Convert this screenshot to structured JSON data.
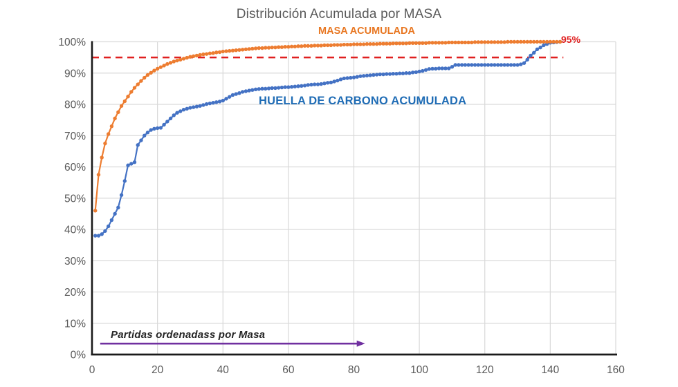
{
  "title": "Distribución Acumulada por MASA",
  "annotations": {
    "masa_label": "MASA ACUMULADA",
    "huella_label": "HUELLA DE CARBONO ACUMULADA",
    "threshold_label": "95%",
    "arrow_label": "Partidas ordenadass por Masa"
  },
  "colors": {
    "masa_series": "#ed7d31",
    "huella_series": "#4472c4",
    "masa_label_text": "#e87722",
    "huella_label_text": "#1f6cb5",
    "threshold_red": "#e02020",
    "arrow_purple": "#7030a0",
    "title_text": "#595959",
    "axis_text": "#595959",
    "gridline": "#d9d9d9",
    "axis_line": "#1a1a1a"
  },
  "chart_data": {
    "type": "line",
    "title": "Distribución Acumulada por MASA",
    "xlabel": "Partidas ordenadass por Masa",
    "ylabel": "",
    "xlim": [
      0,
      160
    ],
    "ylim_pct": [
      0,
      100
    ],
    "grid": true,
    "x_ticks": [
      0,
      20,
      40,
      60,
      80,
      100,
      120,
      140,
      160
    ],
    "y_ticks": [
      "0%",
      "10%",
      "20%",
      "30%",
      "40%",
      "50%",
      "60%",
      "70%",
      "80%",
      "90%",
      "100%"
    ],
    "threshold": {
      "value_pct": 95,
      "label": "95%",
      "line_end_x": 144
    },
    "arrow": {
      "label": "Partidas ordenadass por Masa",
      "x_start": 2.5,
      "x_end": 83,
      "y_pct": 3.5
    },
    "n_points": 143,
    "x_start": 1,
    "x_step": 1,
    "series": [
      {
        "name": "MASA ACUMULADA",
        "color": "#ed7d31",
        "values_pct": [
          46,
          57.5,
          63,
          67.5,
          70.5,
          73,
          75.5,
          77.5,
          79.5,
          81,
          82.5,
          84,
          85.3,
          86.4,
          87.5,
          88.5,
          89.4,
          90.1,
          90.8,
          91.4,
          91.9,
          92.4,
          92.9,
          93.3,
          93.7,
          94,
          94.3,
          94.6,
          94.9,
          95.2,
          95.4,
          95.6,
          95.8,
          96,
          96.1,
          96.3,
          96.4,
          96.6,
          96.7,
          96.9,
          97,
          97.1,
          97.2,
          97.3,
          97.4,
          97.5,
          97.6,
          97.7,
          97.8,
          97.9,
          98,
          98,
          98.1,
          98.1,
          98.2,
          98.2,
          98.3,
          98.3,
          98.4,
          98.4,
          98.5,
          98.5,
          98.6,
          98.6,
          98.7,
          98.7,
          98.7,
          98.8,
          98.8,
          98.8,
          98.9,
          98.9,
          98.9,
          99,
          99,
          99,
          99.1,
          99.1,
          99.1,
          99.2,
          99.2,
          99.2,
          99.2,
          99.3,
          99.3,
          99.3,
          99.3,
          99.4,
          99.4,
          99.4,
          99.4,
          99.5,
          99.5,
          99.5,
          99.5,
          99.5,
          99.6,
          99.6,
          99.6,
          99.6,
          99.6,
          99.6,
          99.7,
          99.7,
          99.7,
          99.7,
          99.7,
          99.7,
          99.8,
          99.8,
          99.8,
          99.8,
          99.8,
          99.8,
          99.8,
          99.8,
          99.9,
          99.9,
          99.9,
          99.9,
          99.9,
          99.9,
          99.9,
          99.9,
          99.9,
          99.9,
          100,
          100,
          100,
          100,
          100,
          100,
          100,
          100,
          100,
          100,
          100,
          100,
          100,
          100,
          100,
          100,
          100
        ]
      },
      {
        "name": "HUELLA DE CARBONO ACUMULADA",
        "color": "#4472c4",
        "values_pct": [
          38,
          38,
          38.5,
          39.5,
          41,
          43,
          45,
          47,
          51,
          55.5,
          60.5,
          61,
          61.5,
          67,
          68.5,
          70,
          71,
          71.8,
          72.2,
          72.4,
          72.5,
          73.5,
          74.5,
          75.5,
          76.5,
          77.3,
          77.8,
          78.3,
          78.6,
          78.9,
          79.1,
          79.3,
          79.5,
          79.8,
          80.1,
          80.3,
          80.5,
          80.7,
          80.9,
          81.2,
          81.8,
          82.4,
          83,
          83.3,
          83.6,
          84,
          84.2,
          84.4,
          84.6,
          84.8,
          84.9,
          85,
          85,
          85.1,
          85.2,
          85.2,
          85.3,
          85.4,
          85.5,
          85.5,
          85.6,
          85.7,
          85.8,
          85.9,
          86,
          86.2,
          86.3,
          86.4,
          86.4,
          86.5,
          86.7,
          86.9,
          87,
          87.3,
          87.6,
          88,
          88.3,
          88.4,
          88.5,
          88.6,
          88.8,
          89,
          89.1,
          89.2,
          89.3,
          89.4,
          89.5,
          89.6,
          89.6,
          89.7,
          89.7,
          89.8,
          89.8,
          89.9,
          89.9,
          90,
          90,
          90.2,
          90.3,
          90.5,
          90.7,
          91,
          91.3,
          91.4,
          91.4,
          91.5,
          91.5,
          91.5,
          91.5,
          92,
          92.6,
          92.6,
          92.6,
          92.6,
          92.6,
          92.6,
          92.6,
          92.6,
          92.6,
          92.6,
          92.6,
          92.6,
          92.6,
          92.6,
          92.6,
          92.6,
          92.6,
          92.6,
          92.6,
          92.6,
          92.8,
          93.2,
          94.3,
          95.6,
          96.5,
          97.6,
          98.2,
          98.9,
          99.3,
          99.7,
          99.8,
          99.9,
          100
        ]
      }
    ]
  }
}
